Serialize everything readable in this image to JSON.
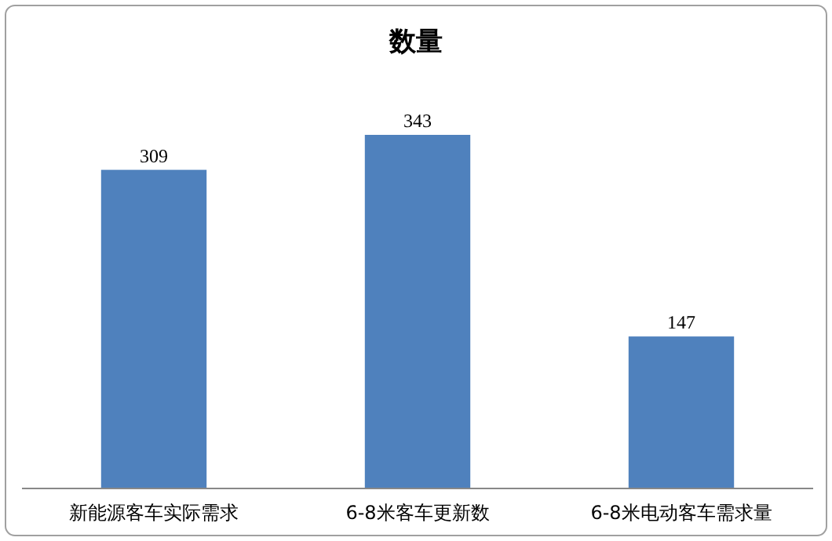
{
  "chart_data": {
    "type": "bar",
    "title": "数量",
    "categories": [
      "新能源客车实际需求",
      "6-8米客车更新数",
      "6-8米电动客车需求量"
    ],
    "values": [
      309,
      343,
      147
    ],
    "color": "#4f81bd",
    "data_labels": true
  }
}
